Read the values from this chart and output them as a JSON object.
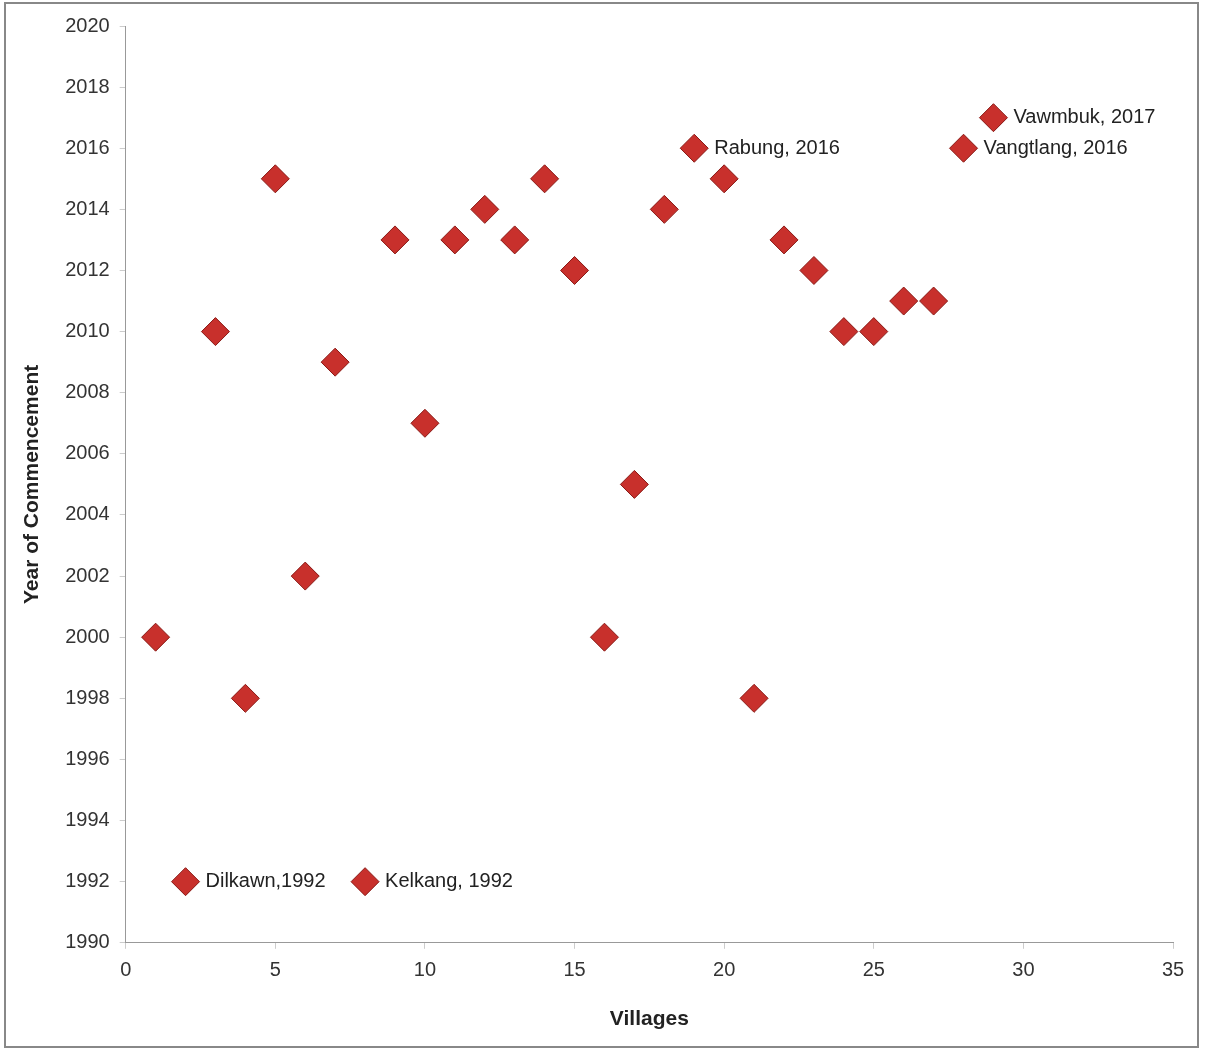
{
  "chart_data": {
    "type": "scatter",
    "xlabel": "Villages",
    "ylabel": "Year of Commencement",
    "x": [
      1,
      2,
      3,
      4,
      5,
      6,
      7,
      8,
      9,
      10,
      11,
      12,
      13,
      14,
      15,
      16,
      17,
      18,
      19,
      20,
      21,
      22,
      23,
      24,
      25,
      26,
      27,
      28,
      29
    ],
    "values": [
      2000,
      1992,
      2010,
      1998,
      2015,
      2002,
      2009,
      1992,
      2013,
      2007,
      2013,
      2014,
      2013,
      2015,
      2012,
      2000,
      2005,
      2014,
      2016,
      2015,
      1998,
      2013,
      2012,
      2010,
      2010,
      2011,
      2011,
      2016,
      2017
    ],
    "color": "#c8302c",
    "marker": "diamond",
    "grid": false,
    "legend": false,
    "xlim": [
      0,
      35
    ],
    "xticks": [
      0,
      5,
      10,
      15,
      20,
      25,
      30,
      35
    ],
    "ylim": [
      1990,
      2020
    ],
    "yticks": [
      1990,
      1992,
      1994,
      1996,
      1998,
      2000,
      2002,
      2004,
      2006,
      2008,
      2010,
      2012,
      2014,
      2016,
      2018,
      2020
    ],
    "annotations": [
      {
        "text": "Dilkawn,1992",
        "x": 2,
        "y": 1992
      },
      {
        "text": "Kelkang, 1992",
        "x": 8,
        "y": 1992
      },
      {
        "text": "Rabung, 2016",
        "x": 19,
        "y": 2016
      },
      {
        "text": "Vangtlang, 2016",
        "x": 28,
        "y": 2016
      },
      {
        "text": "Vawmbuk, 2017",
        "x": 29,
        "y": 2017
      }
    ]
  }
}
